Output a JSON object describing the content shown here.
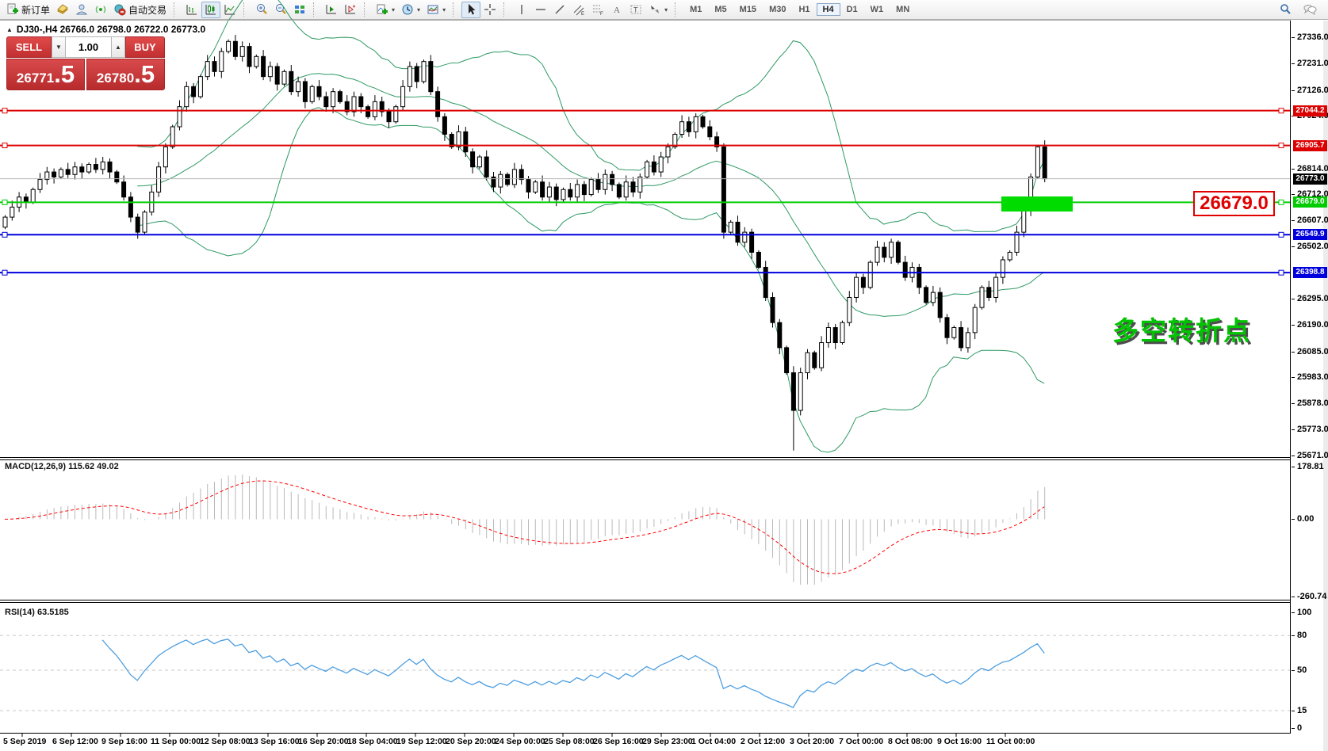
{
  "toolbar": {
    "new_order_label": "新订单",
    "auto_trading_label": "自动交易",
    "timeframes": [
      "M1",
      "M5",
      "M15",
      "M30",
      "H1",
      "H4",
      "D1",
      "W1",
      "MN"
    ],
    "active_timeframe": "H4"
  },
  "chart": {
    "title": "DJ30-,H4 26766.0 26798.0 26722.0 26773.0",
    "trade_panel": {
      "sell_label": "SELL",
      "buy_label": "BUY",
      "volume": "1.00",
      "sell_price_main": "26771",
      "sell_price_frac": ".5",
      "buy_price_main": "26780",
      "buy_price_frac": ".5"
    },
    "big_label": "26679.0",
    "annotation": "多空转折点",
    "current_price": {
      "price": 26773.0,
      "label": "26773.0",
      "color": "#000000"
    },
    "levels": [
      {
        "price": 27044.2,
        "label": "27044.2",
        "color": "#dd0000"
      },
      {
        "price": 26905.7,
        "label": "26905.7",
        "color": "#dd0000"
      },
      {
        "price": 26679.0,
        "label": "26679.0",
        "color": "#00cc00"
      },
      {
        "price": 26549.9,
        "label": "26549.9",
        "color": "#0000dd"
      },
      {
        "price": 26398.8,
        "label": "26398.8",
        "color": "#0000dd"
      }
    ],
    "y_ticks": [
      "27336.0",
      "27231.0",
      "27126.0",
      "27024.0",
      "26814.0",
      "26712.0",
      "26607.0",
      "26502.0",
      "26295.0",
      "26190.0",
      "26085.0",
      "25983.0",
      "25878.0",
      "25773.0",
      "25671.0"
    ]
  },
  "macd": {
    "label": "MACD(12,26,9) 115.62 49.02",
    "params": {
      "fast": 12,
      "slow": 26,
      "signal": 9
    },
    "y_ticks": [
      "178.81",
      "0.00",
      "-260.74"
    ]
  },
  "rsi": {
    "label": "RSI(14) 63.5185",
    "period": 14,
    "y_ticks": [
      "100",
      "80",
      "50",
      "15",
      "0"
    ],
    "dashed_levels": [
      80,
      50,
      15
    ]
  },
  "x_axis": [
    "5 Sep 2019",
    "6 Sep 12:00",
    "9 Sep 16:00",
    "11 Sep 00:00",
    "12 Sep 08:00",
    "13 Sep 16:00",
    "16 Sep 20:00",
    "18 Sep 04:00",
    "19 Sep 12:00",
    "20 Sep 20:00",
    "24 Sep 00:00",
    "25 Sep 08:00",
    "26 Sep 16:00",
    "29 Sep 23:00",
    "1 Oct 04:00",
    "2 Oct 12:00",
    "3 Oct 20:00",
    "7 Oct 00:00",
    "8 Oct 08:00",
    "9 Oct 16:00",
    "11 Oct 00:00"
  ],
  "chart_data": {
    "type": "candlestick",
    "symbol_period": "DJ30-,H4",
    "ohlc_display": {
      "open": "26766.0",
      "high": "26798.0",
      "low": "26722.0",
      "close": "26773.0"
    },
    "visible_price_range": [
      25664,
      27403
    ],
    "macd_value_range": [
      -272,
      202
    ],
    "rsi_value_range": [
      -4.2,
      106.9
    ],
    "bollinger": {
      "period": 20,
      "deviation": 2,
      "color": "#2d9963"
    },
    "first_open": 26580,
    "spike": {
      "index": 113,
      "low": 25690
    },
    "closes": [
      26620,
      26660,
      26700,
      26680,
      26730,
      26770,
      26800,
      26780,
      26810,
      26790,
      26820,
      26800,
      26830,
      26810,
      26840,
      26800,
      26760,
      26700,
      26620,
      26560,
      26640,
      26720,
      26820,
      26900,
      26980,
      27060,
      27140,
      27100,
      27180,
      27240,
      27200,
      27280,
      27320,
      27260,
      27300,
      27220,
      27260,
      27180,
      27220,
      27150,
      27200,
      27120,
      27160,
      27080,
      27140,
      27100,
      27060,
      27120,
      27080,
      27040,
      27100,
      27060,
      27020,
      27080,
      27040,
      27000,
      27060,
      27140,
      27220,
      27160,
      27240,
      27120,
      27020,
      26950,
      26900,
      26960,
      26880,
      26820,
      26860,
      26780,
      26740,
      26790,
      26750,
      26810,
      26770,
      26720,
      26760,
      26700,
      26740,
      26690,
      26730,
      26700,
      26750,
      26710,
      26770,
      26730,
      26790,
      26750,
      26700,
      26760,
      26720,
      26780,
      26840,
      26800,
      26860,
      26900,
      26950,
      27000,
      26960,
      27020,
      26980,
      26940,
      26900,
      26560,
      26600,
      26520,
      26560,
      26480,
      26420,
      26300,
      26200,
      26100,
      26000,
      25850,
      26000,
      26080,
      26020,
      26120,
      26180,
      26120,
      26200,
      26300,
      26380,
      26340,
      26440,
      26500,
      26460,
      26520,
      26440,
      26380,
      26420,
      26340,
      26280,
      26320,
      26220,
      26140,
      26180,
      26100,
      26160,
      26260,
      26340,
      26300,
      26380,
      26450,
      26480,
      26560,
      26650,
      26780,
      26900,
      26773
    ],
    "colors": {
      "up_fill": "#ffffff",
      "down_fill": "#000000",
      "outline": "#000000",
      "macd_hist": "#b9b9b9",
      "macd_signal": "#ff0000",
      "rsi_line": "#4d9ee0"
    }
  }
}
